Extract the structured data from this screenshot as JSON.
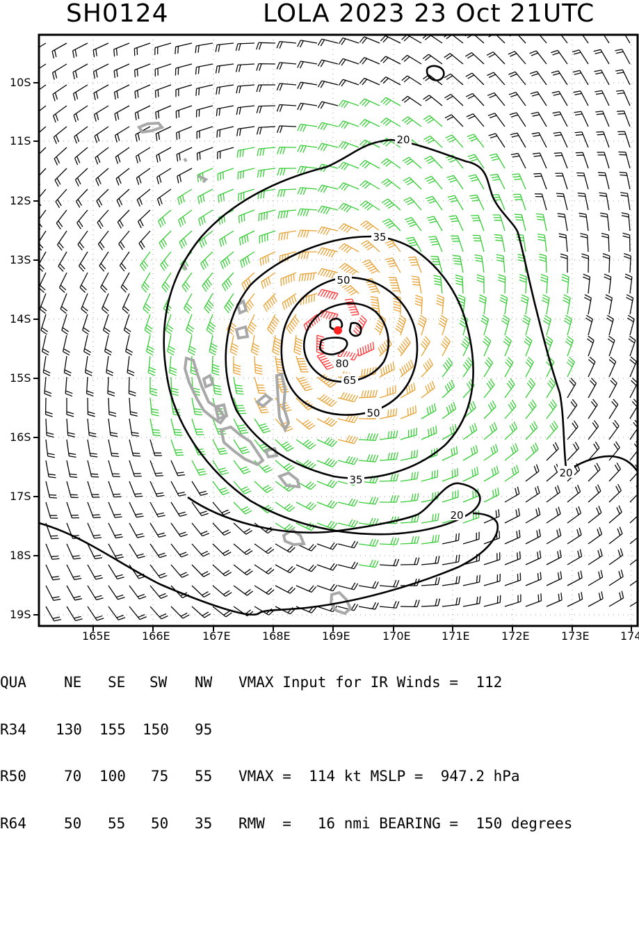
{
  "header": {
    "storm_id": "SH0124",
    "title": "LOLA 2023 23 Oct 21UTC"
  },
  "map": {
    "lat_labels": [
      "10S",
      "11S",
      "12S",
      "13S",
      "14S",
      "15S",
      "16S",
      "17S",
      "18S",
      "19S"
    ],
    "lon_labels": [
      "165E",
      "166E",
      "167E",
      "168E",
      "169E",
      "170E",
      "171E",
      "172E",
      "173E",
      "174"
    ],
    "contour_labels": [
      "20",
      "35",
      "50",
      "65",
      "80",
      "50",
      "35",
      "20",
      "20"
    ],
    "colors": {
      "calm_barbs": "#000000",
      "gale_barbs": "#33cc33",
      "storm_barbs": "#e8a030",
      "hurricane_barbs": "#ff3333",
      "land": "#a8a8a8",
      "center": "#ff2222"
    }
  },
  "table": {
    "header": [
      "QUA",
      "NE",
      "SE",
      "SW",
      "NW"
    ],
    "rows": [
      {
        "label": "R34",
        "values": [
          "130",
          "155",
          "150",
          "95"
        ]
      },
      {
        "label": "R50",
        "values": [
          "70",
          "100",
          "75",
          "55"
        ]
      },
      {
        "label": "R64",
        "values": [
          "50",
          "55",
          "50",
          "35"
        ]
      }
    ],
    "vmax_input": "VMAX Input for IR Winds =  112",
    "vmax_line": "VMAX =  114 kt MSLP =  947.2 hPa",
    "rmw_line": "RMW  =   16 nmi BEARING =  150 degrees"
  }
}
